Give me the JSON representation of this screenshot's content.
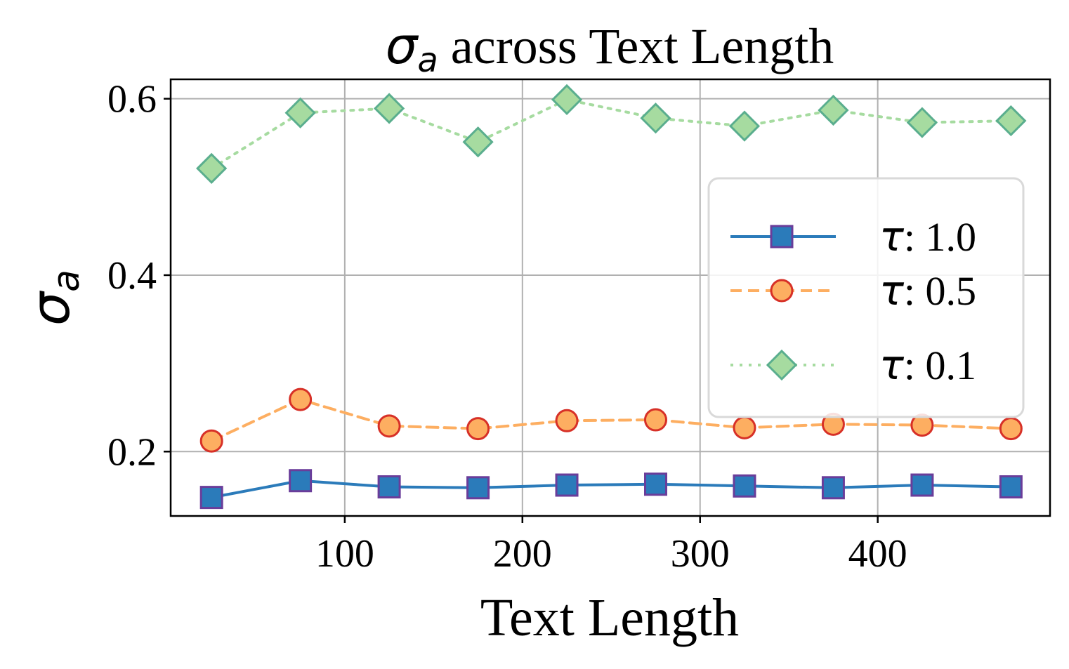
{
  "chart_data": {
    "type": "line",
    "title": {
      "symbol": "σ",
      "sub": "a",
      "text": " across Text Length"
    },
    "xlabel": "Text Length",
    "ylabel": {
      "symbol": "σ",
      "sub": "a"
    },
    "xlim": [
      2,
      497
    ],
    "ylim": [
      0.127,
      0.622
    ],
    "xticks": [
      100,
      200,
      300,
      400
    ],
    "yticks": [
      0.2,
      0.4,
      0.6
    ],
    "xtick_labels": [
      "100",
      "200",
      "300",
      "400"
    ],
    "ytick_labels": [
      "0.2",
      "0.4",
      "0.6"
    ],
    "grid": true,
    "legend_position": "center-right",
    "x": [
      25,
      75,
      125,
      175,
      225,
      275,
      325,
      375,
      425,
      475
    ],
    "series": [
      {
        "name": "τ: 1.0",
        "symbol": "τ",
        "value_label": ": 1.0",
        "values": [
          0.148,
          0.167,
          0.16,
          0.159,
          0.162,
          0.163,
          0.161,
          0.159,
          0.162,
          0.16
        ],
        "line_color": "#2b7bba",
        "marker": "square",
        "marker_fill": "#2b7bba",
        "marker_edge": "#6a3d9a",
        "dash": "solid"
      },
      {
        "name": "τ: 0.5",
        "symbol": "τ",
        "value_label": ": 0.5",
        "values": [
          0.212,
          0.259,
          0.229,
          0.226,
          0.235,
          0.236,
          0.227,
          0.231,
          0.23,
          0.226
        ],
        "line_color": "#fdae61",
        "marker": "circle",
        "marker_fill": "#fdae61",
        "marker_edge": "#d73027",
        "dash": "dashed"
      },
      {
        "name": "τ: 0.1",
        "symbol": "τ",
        "value_label": ": 0.1",
        "values": [
          0.521,
          0.584,
          0.589,
          0.551,
          0.599,
          0.578,
          0.569,
          0.587,
          0.573,
          0.575
        ],
        "line_color": "#a6dba0",
        "marker": "diamond",
        "marker_fill": "#a6dba0",
        "marker_edge": "#5aae8e",
        "dash": "dotted"
      }
    ]
  }
}
